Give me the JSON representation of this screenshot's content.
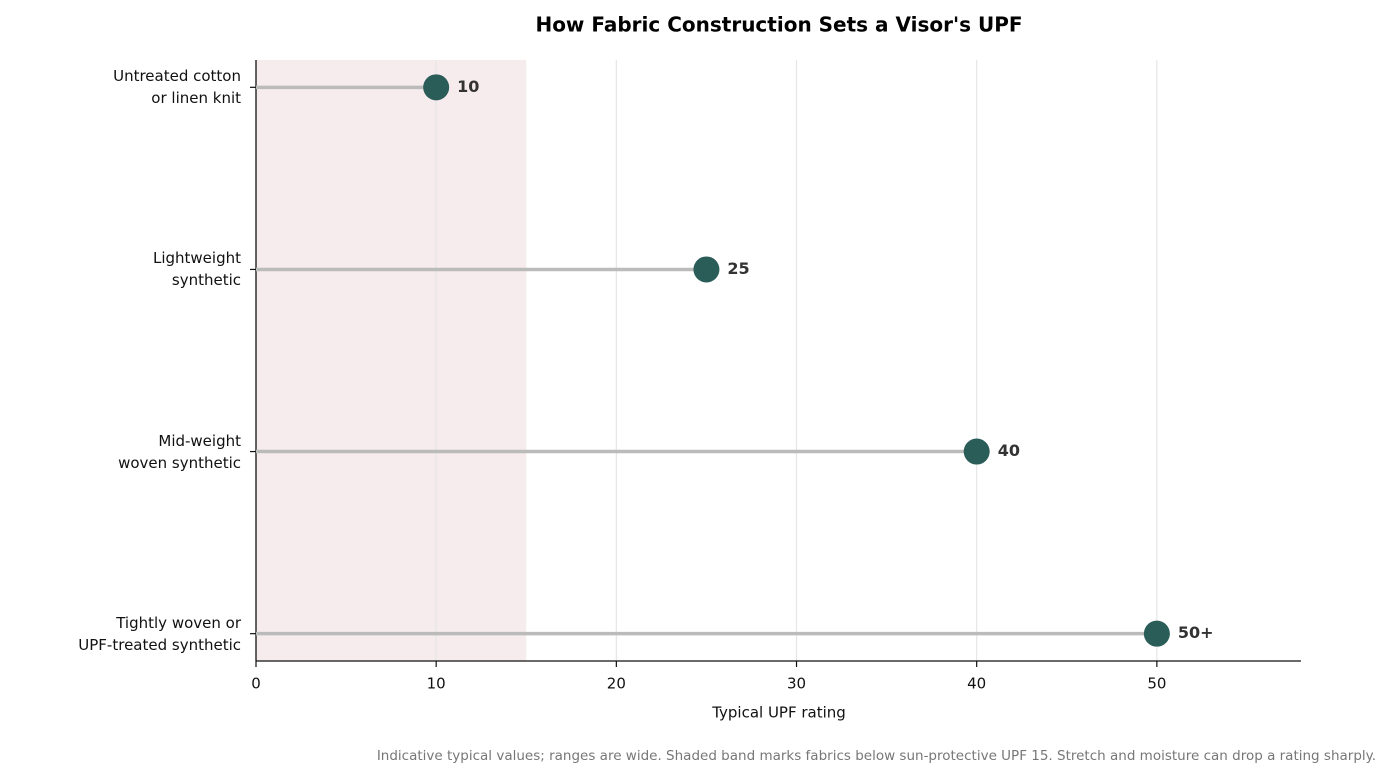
{
  "chart_data": {
    "type": "lollipop",
    "title": "How Fabric Construction Sets a Visor's UPF",
    "categories": [
      "Untreated cotton\nor linen knit",
      "Lightweight\nsynthetic",
      "Mid-weight\nwoven synthetic",
      "Tightly woven or\nUPF-treated synthetic"
    ],
    "values": [
      10,
      25,
      40,
      50
    ],
    "value_labels": [
      "10",
      "25",
      "40",
      "50+"
    ],
    "color": "#2a5c58",
    "stem_color": "#bbbbbb",
    "xlabel": "Typical UPF rating",
    "xlim": [
      0,
      58
    ],
    "xticks": [
      0,
      10,
      20,
      30,
      40,
      50
    ],
    "grid": true,
    "shaded_range": [
      0,
      15
    ],
    "shade_color": "#f6eced",
    "footnote": "Indicative typical values; ranges are wide. Shaded band marks fabrics below sun-protective UPF 15. Stretch and moisture can drop a rating sharply."
  }
}
